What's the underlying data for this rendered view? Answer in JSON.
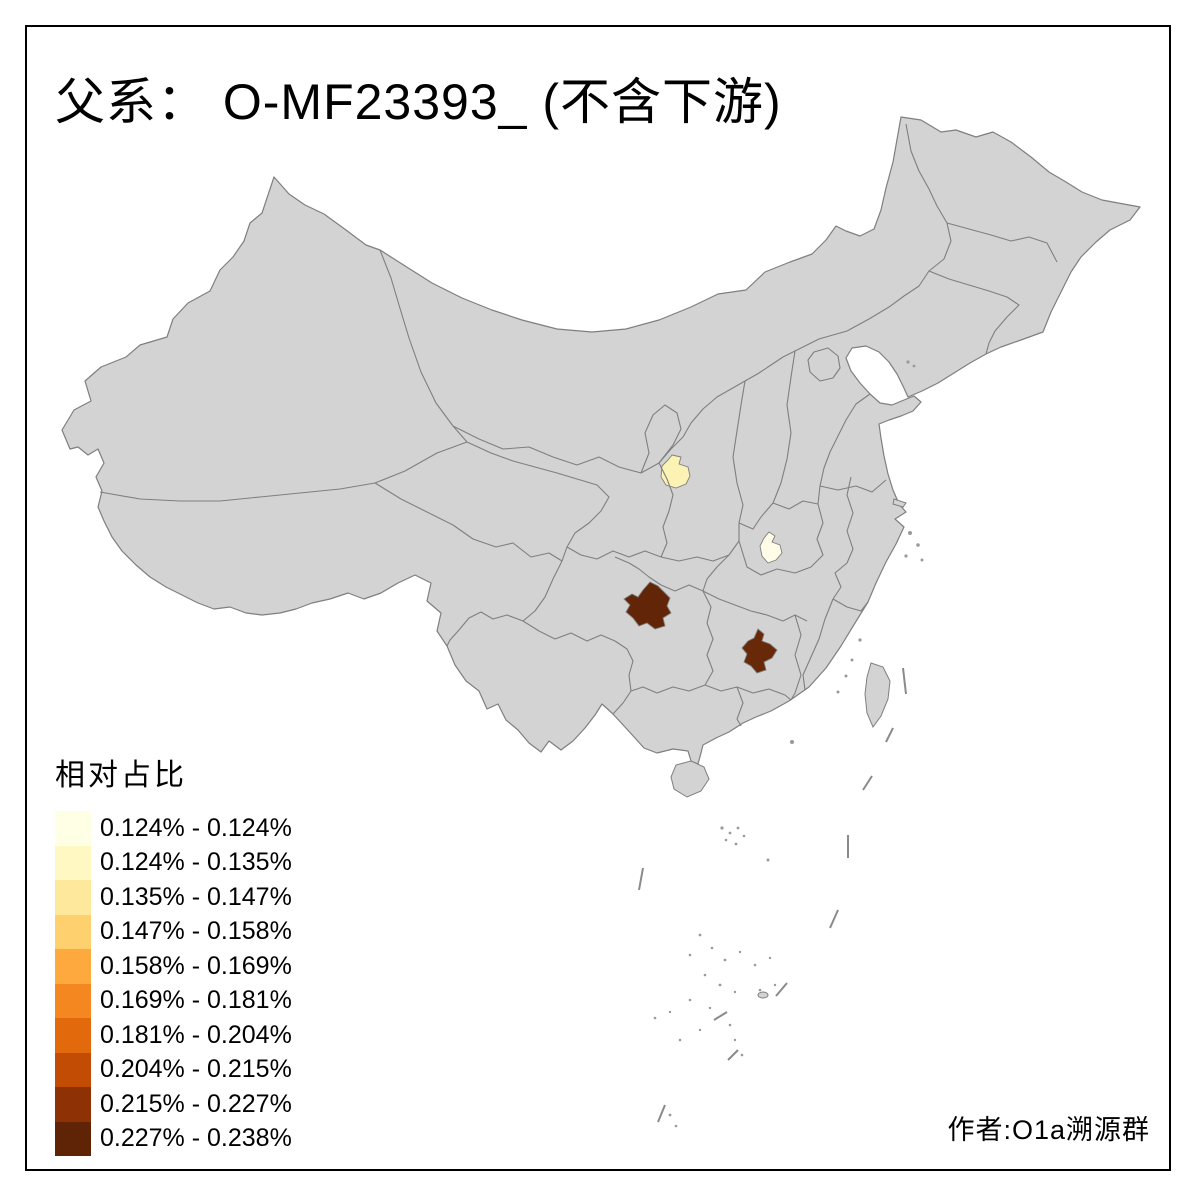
{
  "title": "父系：  O-MF23393_ (不含下游)",
  "legend": {
    "title": "相对占比",
    "classes": [
      {
        "range": "0.124% - 0.124%",
        "color": "#FFFFE5"
      },
      {
        "range": "0.124% - 0.135%",
        "color": "#FFF8C2"
      },
      {
        "range": "0.135% - 0.147%",
        "color": "#FEE89B"
      },
      {
        "range": "0.147% - 0.158%",
        "color": "#FED16E"
      },
      {
        "range": "0.158% - 0.169%",
        "color": "#FEA93D"
      },
      {
        "range": "0.169% - 0.181%",
        "color": "#F58720"
      },
      {
        "range": "0.181% - 0.204%",
        "color": "#E26A0D"
      },
      {
        "range": "0.204% - 0.215%",
        "color": "#C24C03"
      },
      {
        "range": "0.215% - 0.227%",
        "color": "#8E3104"
      },
      {
        "range": "0.227% - 0.238%",
        "color": "#5F2306"
      }
    ]
  },
  "attribution": "作者:O1a溯源群",
  "map": {
    "base_fill": "#d3d3d3",
    "border_color": "#7f7f7f",
    "frame_color": "#000000",
    "background": "#ffffff",
    "highlighted_regions": [
      {
        "id": "region-southeast-gansu",
        "class": "0.124% - 0.135%",
        "color": "#FBF2B4"
      },
      {
        "id": "region-southwest-henan",
        "class": "0.124% - 0.124%",
        "color": "#FFFDE7"
      },
      {
        "id": "region-central-guizhou",
        "class": "0.227% - 0.238%",
        "color": "#632507"
      },
      {
        "id": "region-central-hunan",
        "class": "0.227% - 0.238%",
        "color": "#682908"
      }
    ]
  },
  "chart_data": {
    "type": "choropleth",
    "region_scope": "China, prefecture-level divisions",
    "title": "父系：  O-MF23393_ (不含下游)",
    "legend_title": "相对占比",
    "legend_position": "bottom-left",
    "value_unit": "percent",
    "value_range": [
      0.124,
      0.238
    ],
    "classes": [
      "0.124% - 0.124%",
      "0.124% - 0.135%",
      "0.135% - 0.147%",
      "0.147% - 0.158%",
      "0.158% - 0.169%",
      "0.169% - 0.181%",
      "0.181% - 0.204%",
      "0.204% - 0.215%",
      "0.215% - 0.227%",
      "0.227% - 0.238%"
    ],
    "palette": [
      "#FFFFE5",
      "#FFF8C2",
      "#FEE89B",
      "#FED16E",
      "#FEA93D",
      "#F58720",
      "#E26A0D",
      "#C24C03",
      "#8E3104",
      "#5F2306"
    ],
    "colored_regions": [
      {
        "approx_location": "prefecture in southeastern Gansu (upper-center of map)",
        "class": "0.124% - 0.135%"
      },
      {
        "approx_location": "prefecture in southwestern Henan (center of map)",
        "class": "0.124% - 0.124%"
      },
      {
        "approx_location": "prefecture in central Guizhou (south-center of map)",
        "class": "0.227% - 0.238%"
      },
      {
        "approx_location": "prefecture in central Hunan (south-center of map)",
        "class": "0.227% - 0.238%"
      }
    ],
    "uncolored_regions": "all other divisions shown in neutral gray (no data)"
  }
}
